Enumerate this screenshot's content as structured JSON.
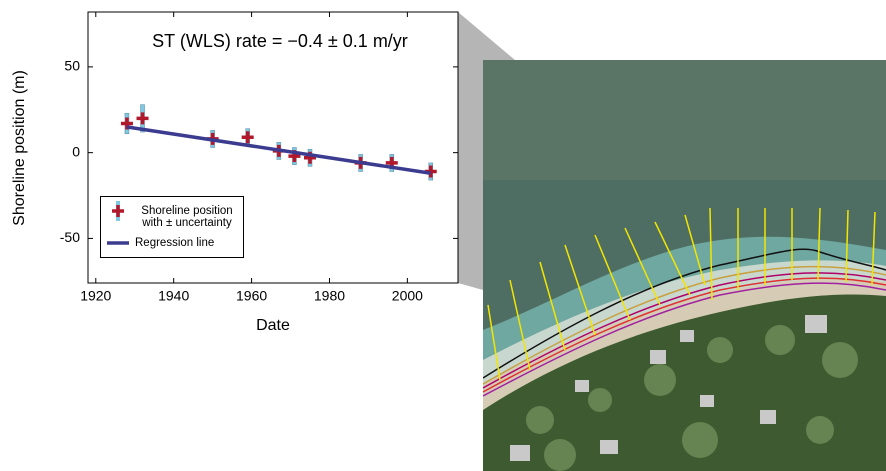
{
  "chart_data": {
    "type": "scatter",
    "title": "ST (WLS) rate = −0.4 ± 0.1 m/yr",
    "xlabel": "Date",
    "ylabel": "Shoreline position (m)",
    "xlim": [
      1918,
      2013
    ],
    "ylim": [
      -76,
      82
    ],
    "xticks": [
      1920,
      1940,
      1960,
      1980,
      2000
    ],
    "yticks": [
      -50,
      0,
      50
    ],
    "series": [
      {
        "name": "Shoreline position with ± uncertainty",
        "kind": "points",
        "color": "#b2182b",
        "error_color": "#7ec8e3",
        "x": [
          1928,
          1932,
          1950,
          1959,
          1967,
          1971,
          1975,
          1988,
          1996,
          2006
        ],
        "values": [
          17,
          20,
          8,
          9,
          1,
          -2,
          -3,
          -6,
          -6,
          -11
        ],
        "errors": [
          6,
          8,
          5,
          5,
          5,
          5,
          5,
          5,
          5,
          5
        ]
      },
      {
        "name": "Regression line",
        "kind": "line",
        "color": "#3b3b8f",
        "x": [
          1928,
          2006
        ],
        "values": [
          15,
          -12
        ]
      }
    ]
  }
}
